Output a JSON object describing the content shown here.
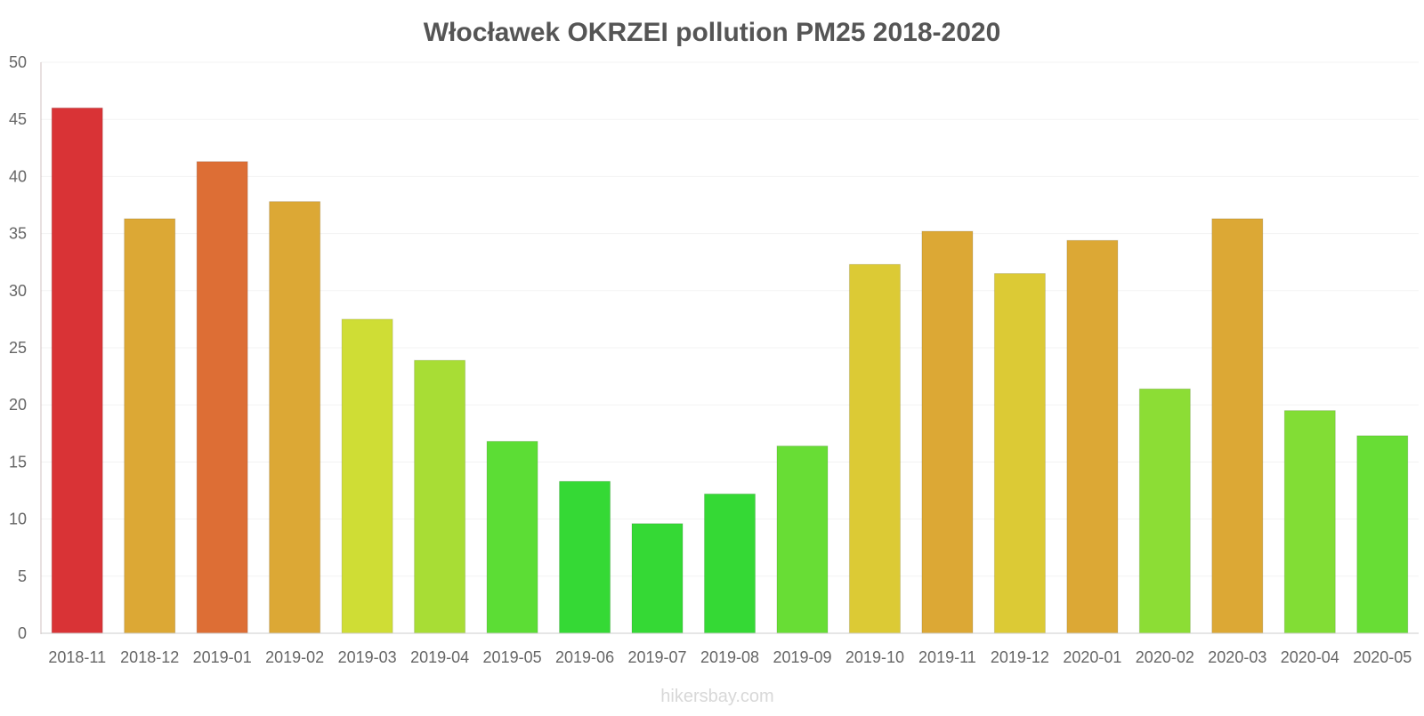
{
  "chart_data": {
    "type": "bar",
    "title": "Włocławek OKRZEI pollution PM25 2018-2020",
    "xlabel": "",
    "ylabel": "",
    "ylim": [
      0,
      50
    ],
    "yticks": [
      0,
      5,
      10,
      15,
      20,
      25,
      30,
      35,
      40,
      45,
      50
    ],
    "grid": true,
    "categories": [
      "2018-11",
      "2018-12",
      "2019-01",
      "2019-02",
      "2019-03",
      "2019-04",
      "2019-05",
      "2019-06",
      "2019-07",
      "2019-08",
      "2019-09",
      "2019-10",
      "2019-11",
      "2019-12",
      "2020-01",
      "2020-02",
      "2020-03",
      "2020-04",
      "2020-05"
    ],
    "values": [
      46,
      36.3,
      41.3,
      37.8,
      27.5,
      23.9,
      16.8,
      13.3,
      9.6,
      12.2,
      16.4,
      32.3,
      35.2,
      31.5,
      34.4,
      21.4,
      36.3,
      19.5,
      17.3
    ],
    "colors": [
      "#d93336",
      "#dca835",
      "#dd6e35",
      "#dca835",
      "#cfdd35",
      "#a8dd35",
      "#5cdd35",
      "#35d935",
      "#35d935",
      "#35d935",
      "#68dd35",
      "#dcca35",
      "#dca835",
      "#dcca35",
      "#dca835",
      "#8cdd35",
      "#dca835",
      "#82dd35",
      "#68dd35"
    ]
  },
  "watermark": "hikersbay.com"
}
